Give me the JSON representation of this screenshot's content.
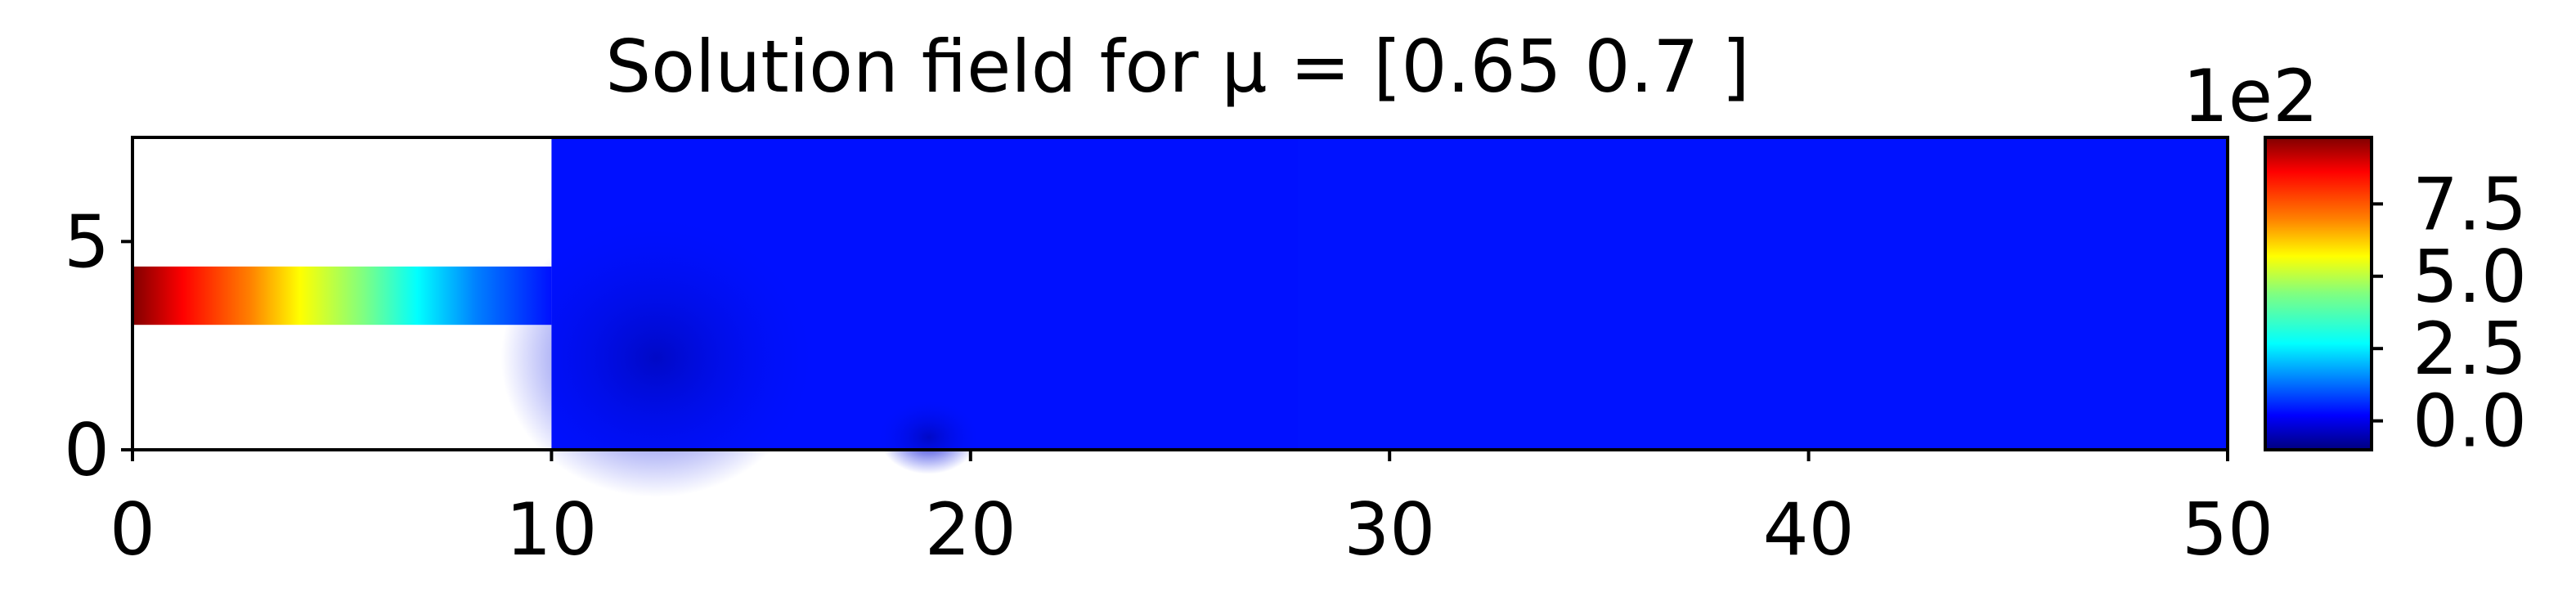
{
  "chart_data": {
    "type": "heatmap",
    "title": "Solution field for μ = [0.65 0.7 ]",
    "xlabel": "",
    "ylabel": "",
    "xlim": [
      0,
      50
    ],
    "ylim": [
      0,
      7.5
    ],
    "x_ticks": [
      0,
      10,
      20,
      30,
      40,
      50
    ],
    "y_ticks": [
      0,
      5
    ],
    "colormap": "jet",
    "colorbar": {
      "multiplier_label": "1e2",
      "range": [
        -1.0,
        9.8
      ],
      "ticks": [
        0.0,
        2.5,
        5.0,
        7.5
      ],
      "tick_labels": [
        "0.0",
        "2.5",
        "5.0",
        "7.5"
      ]
    },
    "regions": [
      {
        "name": "inlet channel",
        "x": [
          0,
          10
        ],
        "y": [
          3.0,
          4.4
        ],
        "profile_x": [
          0,
          2,
          4,
          6,
          8,
          10
        ],
        "profile_values": [
          9.8,
          7.5,
          5.0,
          2.5,
          0.5,
          0.0
        ]
      },
      {
        "name": "main domain",
        "x": [
          10,
          50
        ],
        "y": [
          0,
          7.5
        ],
        "value_range": [
          -1.0,
          0.0
        ]
      }
    ]
  }
}
